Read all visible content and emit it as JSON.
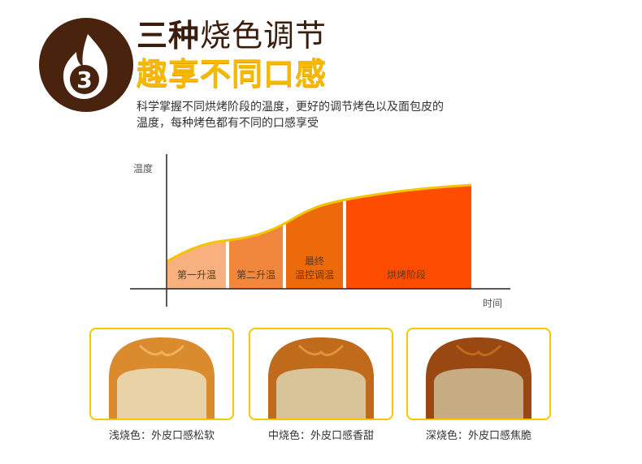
{
  "header": {
    "badge_number": "3",
    "title_bold": "三种",
    "title_rest": "烧色调节",
    "subtitle": "趣享不同口感",
    "description": "科学掌握不同烘烤阶段的温度，更好的调节烤色以及面包皮的温度，每种烤色都有不同的口感享受",
    "colors": {
      "brown": "#4a230f",
      "yellow": "#f7b800"
    }
  },
  "chart_data": {
    "type": "area",
    "ylabel": "温度",
    "xlabel": "时间",
    "stages": [
      {
        "label_lines": [
          "第一升温"
        ],
        "color": "#f7b07e"
      },
      {
        "label_lines": [
          "第二升温"
        ],
        "color": "#f0873c"
      },
      {
        "label_lines": [
          "最终",
          "温控调温"
        ],
        "color": "#ec6a0a"
      },
      {
        "label_lines": [
          "烘烤阶段"
        ],
        "color": "#ff4d00"
      }
    ],
    "curve_color": "#f5c400"
  },
  "breads": [
    {
      "caption": "浅烧色：外皮口感松软",
      "crust": "#d98b2e",
      "crumb": "#e8d2a6"
    },
    {
      "caption": "中烧色：外皮口感香甜",
      "crust": "#c06a1c",
      "crumb": "#d9c49a"
    },
    {
      "caption": "深烧色：外皮口感焦脆",
      "crust": "#9a4812",
      "crumb": "#c7ab82"
    }
  ]
}
